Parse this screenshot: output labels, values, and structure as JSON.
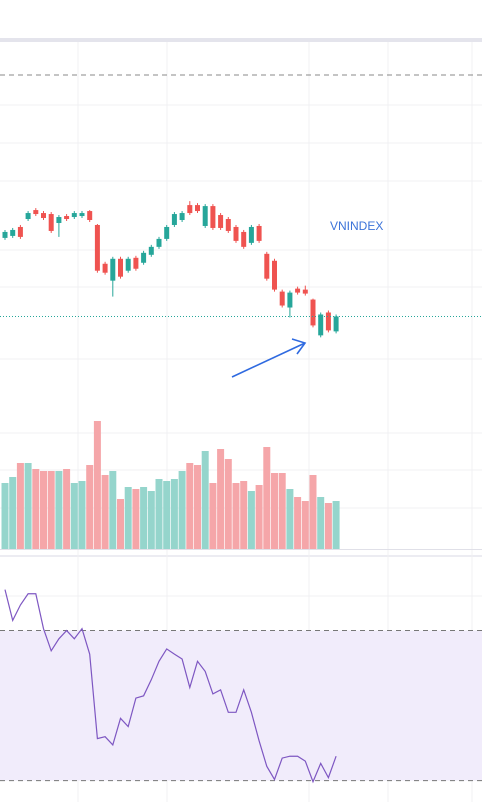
{
  "chart_data": [
    {
      "type": "candlestick",
      "label": "VNINDEX",
      "up_color": "#26a69a",
      "down_color": "#ef5350",
      "ylim": [
        0,
        360
      ],
      "open": [
        163,
        165,
        174,
        182,
        191,
        188,
        187,
        178,
        185,
        184,
        185,
        190,
        176,
        137,
        120,
        142,
        130,
        143,
        138,
        146,
        154,
        162,
        176,
        181,
        196,
        196,
        175,
        195,
        186,
        182,
        174,
        169,
        158,
        175,
        147,
        140,
        109,
        93,
        112,
        111,
        101,
        65,
        88,
        69
      ],
      "high": [
        171,
        173,
        176,
        190,
        193,
        190,
        189,
        186,
        187,
        190,
        190,
        191,
        177,
        139,
        144,
        144,
        144,
        145,
        150,
        156,
        164,
        176,
        189,
        190,
        200,
        198,
        197,
        197,
        188,
        184,
        176,
        171,
        176,
        177,
        149,
        142,
        111,
        110,
        114,
        115,
        102,
        88,
        90,
        86
      ],
      "low": [
        161,
        163,
        162,
        180,
        185,
        181,
        168,
        164,
        180,
        182,
        183,
        179,
        128,
        126,
        104,
        122,
        128,
        130,
        136,
        144,
        152,
        160,
        174,
        179,
        186,
        188,
        173,
        171,
        171,
        168,
        158,
        152,
        156,
        158,
        120,
        109,
        93,
        83,
        106,
        105,
        73,
        63,
        68,
        67
      ],
      "close": [
        169,
        171,
        164,
        188,
        187,
        183,
        170,
        184,
        182,
        188,
        188,
        181,
        130,
        128,
        142,
        124,
        142,
        132,
        148,
        154,
        162,
        174,
        187,
        188,
        188,
        190,
        195,
        173,
        173,
        170,
        160,
        154,
        174,
        160,
        122,
        111,
        95,
        108,
        108,
        107,
        75,
        86,
        70,
        84
      ]
    },
    {
      "type": "bar",
      "up_color": "#95d5cc",
      "down_color": "#f5a6a9",
      "ylim": [
        0,
        149
      ],
      "values": [
        66,
        72,
        86,
        86,
        80,
        78,
        78,
        78,
        80,
        66,
        68,
        84,
        128,
        74,
        78,
        50,
        62,
        60,
        62,
        58,
        70,
        68,
        70,
        78,
        86,
        84,
        98,
        66,
        100,
        90,
        66,
        68,
        58,
        64,
        102,
        76,
        76,
        60,
        52,
        48,
        74,
        52,
        46,
        48
      ]
    },
    {
      "type": "line",
      "color": "#7e57c2",
      "band_color": "#f1ecfb",
      "ylim": [
        24.3,
        89.6
      ],
      "bands": [
        30,
        70
      ],
      "values": [
        80.9,
        72.7,
        76.8,
        79.8,
        79.8,
        70.5,
        64.6,
        67.8,
        70,
        67.8,
        70.5,
        63.7,
        41.2,
        41.7,
        39.5,
        46.6,
        44.4,
        52.0,
        52.6,
        56.9,
        61.8,
        65.1,
        63.7,
        62.4,
        54.8,
        61.8,
        59.1,
        53.1,
        54.2,
        48.2,
        48.2,
        54.2,
        48.2,
        40.6,
        33.8,
        30.3,
        36.0,
        36.5,
        36.5,
        35.2,
        29.7,
        34.6,
        30.8,
        36.5
      ]
    }
  ]
}
